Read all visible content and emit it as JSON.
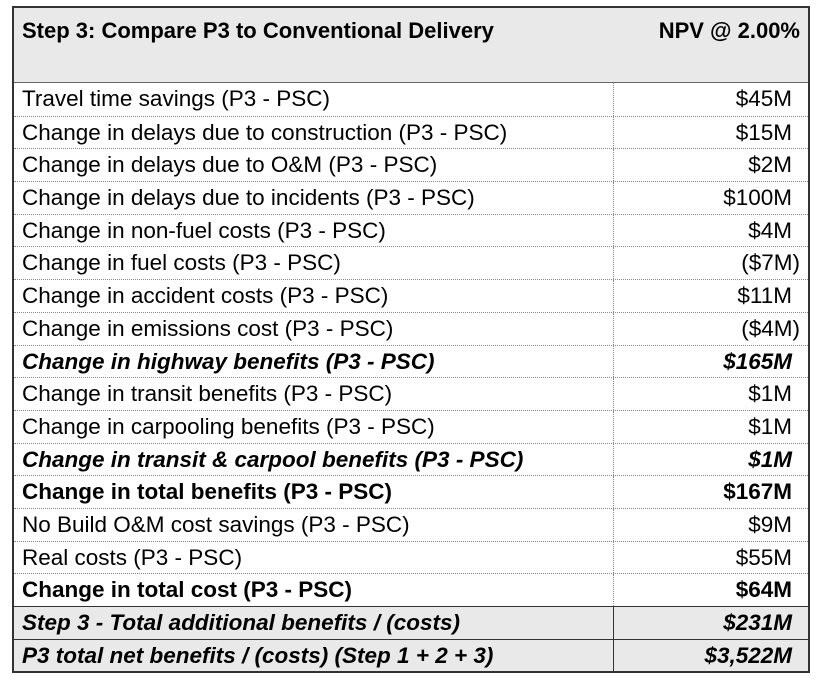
{
  "header": {
    "title": "Step 3: Compare P3 to Conventional Delivery",
    "value_heading": "NPV @ 2.00%"
  },
  "rows": [
    {
      "label": "Travel time savings (P3 - PSC)",
      "value": "$45M",
      "style": "normal"
    },
    {
      "label": "Change in delays due to construction (P3 - PSC)",
      "value": "$15M",
      "style": "normal"
    },
    {
      "label": "Change in delays due to O&M (P3 - PSC)",
      "value": "$2M",
      "style": "normal"
    },
    {
      "label": "Change in delays due to incidents (P3 - PSC)",
      "value": "$100M",
      "style": "normal"
    },
    {
      "label": "Change in non-fuel costs (P3 - PSC)",
      "value": "$4M",
      "style": "normal"
    },
    {
      "label": "Change in fuel costs (P3 - PSC)",
      "value": "($7M)",
      "style": "neg"
    },
    {
      "label": "Change in accident costs (P3 - PSC)",
      "value": "$11M",
      "style": "normal"
    },
    {
      "label": "Change in emissions cost (P3 - PSC)",
      "value": "($4M)",
      "style": "neg"
    },
    {
      "label": "Change in highway benefits (P3 - PSC)",
      "value": "$165M",
      "style": "subtotal"
    },
    {
      "label": "Change in transit benefits (P3 - PSC)",
      "value": "$1M",
      "style": "normal"
    },
    {
      "label": "Change in carpooling benefits (P3 - PSC)",
      "value": "$1M",
      "style": "normal"
    },
    {
      "label": "Change in transit & carpool benefits (P3 - PSC)",
      "value": "$1M",
      "style": "subtotal"
    },
    {
      "label": "Change in total benefits (P3 - PSC)",
      "value": "$167M",
      "style": "total"
    },
    {
      "label": "No Build O&M cost savings (P3 - PSC)",
      "value": "$9M",
      "style": "normal"
    },
    {
      "label": "Real costs (P3 - PSC)",
      "value": "$55M",
      "style": "normal"
    },
    {
      "label": "Change in total cost (P3 - PSC)",
      "value": "$64M",
      "style": "total"
    },
    {
      "label": "Step 3 - Total additional benefits / (costs)",
      "value": "$231M",
      "style": "grand"
    },
    {
      "label": "P3 total net benefits / (costs) (Step 1 + 2 + 3)",
      "value": "$3,522M",
      "style": "grand"
    }
  ]
}
